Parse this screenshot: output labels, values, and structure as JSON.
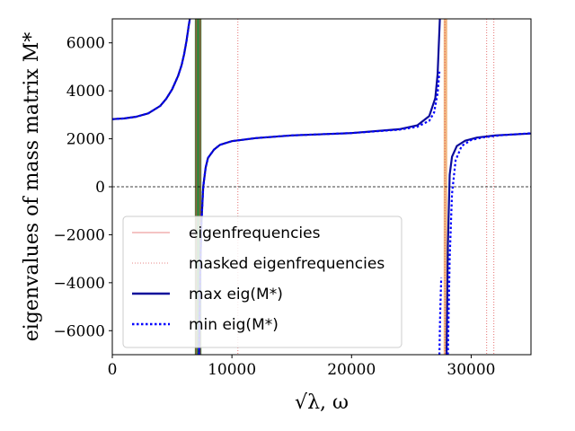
{
  "chart_data": {
    "type": "line",
    "xlabel": "√λ, ω",
    "ylabel": "eigenvalues of mass matrix M*",
    "xlim": [
      0,
      35000
    ],
    "ylim": [
      -7000,
      7000
    ],
    "x_ticks": [
      "0",
      "10000",
      "20000",
      "30000"
    ],
    "y_ticks": [
      "−6000",
      "−4000",
      "−2000",
      "0",
      "2000",
      "4000",
      "6000"
    ],
    "zero_line": true,
    "legend_position": "lower-left",
    "eigenfrequencies": [
      7000,
      7350
    ],
    "masked_eigenfrequencies": [
      10500,
      27800,
      31300,
      31900
    ],
    "shaded_bands": [
      {
        "from": 6900,
        "to": 7450,
        "color": "#2e7d32"
      },
      {
        "from": 27700,
        "to": 28000,
        "color": "#f0b27a"
      }
    ],
    "legend": [
      {
        "label": "eigenfrequencies",
        "style": "thin-solid",
        "color": "#e06060"
      },
      {
        "label": "masked eigenfrequencies",
        "style": "thin-dotted",
        "color": "#e06060"
      },
      {
        "label": "max eig(M*)",
        "style": "solid",
        "color": "#0b0b9a"
      },
      {
        "label": "min eig(M*)",
        "style": "dotted",
        "color": "#0000ff"
      }
    ],
    "series": [
      {
        "name": "max eig(M*)",
        "color": "#0b0b9a",
        "segments": [
          {
            "x": [
              0,
              1000,
              2000,
              3000,
              4000,
              4500,
              5000,
              5500,
              5800,
              6000,
              6200,
              6400,
              6550,
              6650
            ],
            "y": [
              2820,
              2850,
              2920,
              3060,
              3370,
              3660,
              4060,
              4620,
              5080,
              5520,
              6060,
              6750,
              7200,
              7500
            ]
          },
          {
            "x": [
              7250,
              7350,
              7450,
              7600,
              7800,
              8000,
              8500,
              9000,
              10000,
              12000,
              15000,
              20000,
              24000,
              25500,
              26500,
              27000,
              27200,
              27400
            ],
            "y": [
              -7000,
              -3500,
              -1500,
              0,
              800,
              1200,
              1550,
              1750,
              1900,
              2030,
              2140,
              2240,
              2400,
              2560,
              2950,
              3700,
              4700,
              7200
            ]
          },
          {
            "x": [
              27950,
              28050,
              28200,
              28400,
              28800,
              29500,
              30500,
              32000,
              35000
            ],
            "y": [
              -7000,
              -2500,
              500,
              1250,
              1700,
              1920,
              2050,
              2140,
              2220
            ]
          }
        ]
      },
      {
        "name": "min eig(M*)",
        "color": "#0000ff",
        "segments": [
          {
            "x": [
              0,
              1000,
              2000,
              3000,
              4000,
              4500,
              5000,
              5500,
              5800,
              6000,
              6200,
              6400,
              6550,
              6650
            ],
            "y": [
              2820,
              2850,
              2920,
              3060,
              3370,
              3660,
              4060,
              4620,
              5080,
              5520,
              6060,
              6750,
              7200,
              7500
            ]
          },
          {
            "x": [
              7250,
              7350,
              7450,
              7600,
              7800,
              8000,
              8500,
              9000,
              10000,
              12000,
              15000,
              20000,
              24000,
              25500,
              26500,
              26900,
              27200,
              27350
            ],
            "y": [
              -7000,
              -3500,
              -1500,
              0,
              800,
              1200,
              1550,
              1750,
              1900,
              2030,
              2140,
              2240,
              2380,
              2500,
              2750,
              3100,
              3900,
              4800
            ]
          },
          {
            "x": [
              27350,
              27400,
              27500
            ],
            "y": [
              -7000,
              -5500,
              -3800
            ]
          },
          {
            "x": [
              28050,
              28200,
              28400,
              28700,
              29200,
              30000,
              31000,
              32500,
              35000
            ],
            "y": [
              -7000,
              -3000,
              -300,
              1100,
              1700,
              1950,
              2060,
              2150,
              2230
            ]
          }
        ]
      }
    ]
  }
}
